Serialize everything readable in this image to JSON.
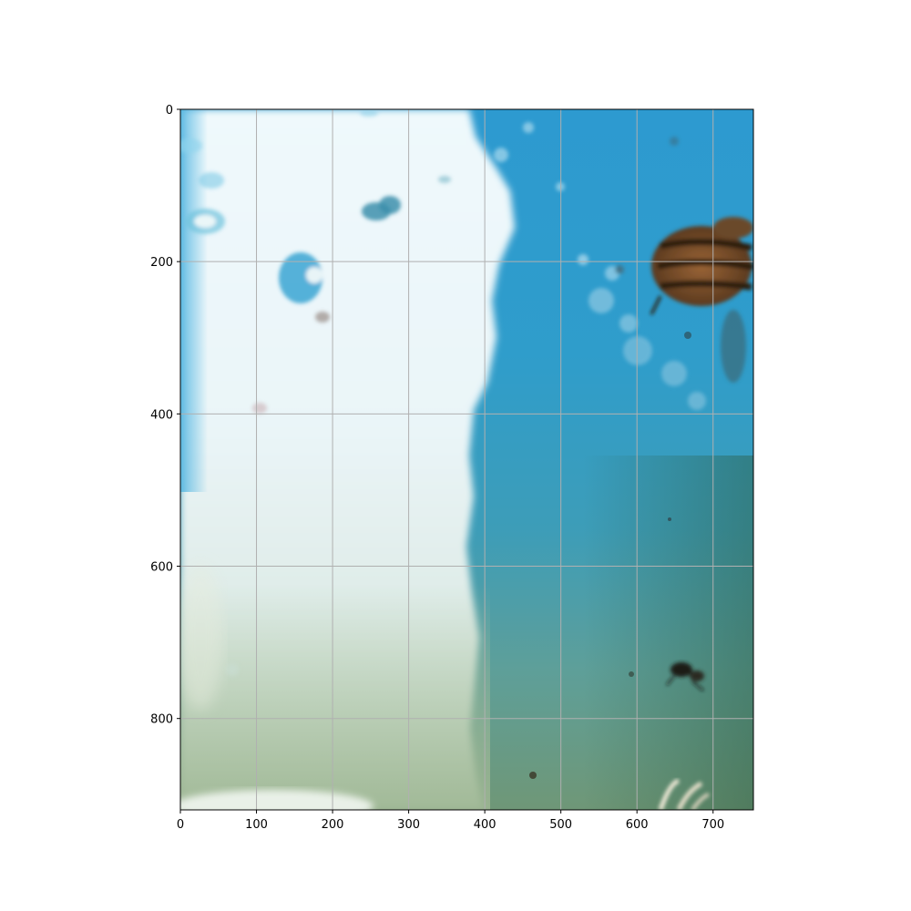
{
  "image": {
    "subject": "underwater-style photo of bees on blue and white surface",
    "colors": {
      "white_region": "#eef8fb",
      "blue_region": "#3aa0cf",
      "green_bottom": "#8aa77f",
      "bee_body": "#7a4a24",
      "bee_stripes": "#2a1a10",
      "grid": "#b0b0b0",
      "axes": "#000000"
    }
  },
  "axes": {
    "x": {
      "ticks": [
        0,
        100,
        200,
        300,
        400,
        500,
        600,
        700
      ],
      "range": [
        0,
        753
      ]
    },
    "y": {
      "ticks": [
        0,
        200,
        400,
        600,
        800
      ],
      "range": [
        0,
        920
      ],
      "inverted": true
    },
    "grid": true
  }
}
